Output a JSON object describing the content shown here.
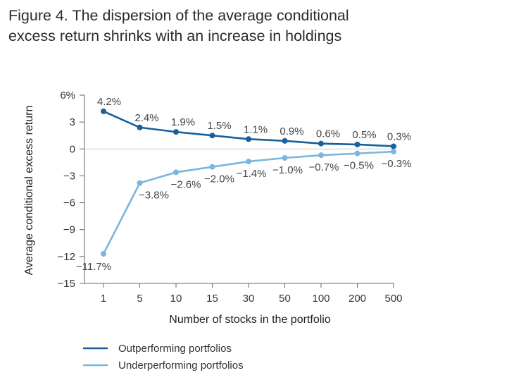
{
  "chart_data": {
    "type": "line",
    "title_lines": [
      "Figure 4. The dispersion of the average conditional",
      "excess return shrinks with an increase in holdings"
    ],
    "xlabel": "Number of stocks in the portfolio",
    "ylabel": "Average conditional excess return",
    "categories": [
      "1",
      "5",
      "10",
      "15",
      "30",
      "50",
      "100",
      "200",
      "500"
    ],
    "ylim": [
      -15,
      6
    ],
    "yticks": [
      6,
      3,
      0,
      -3,
      -6,
      -9,
      -12,
      -15
    ],
    "ytick_labels": [
      "6%",
      "3",
      "0",
      "−3",
      "−6",
      "−9",
      "−12",
      "−15"
    ],
    "grid": false,
    "zero_line": true,
    "legend_position": "bottom-left",
    "series": [
      {
        "name": "Outperforming portfolios",
        "color": "#17609c",
        "values": [
          4.2,
          2.4,
          1.9,
          1.5,
          1.1,
          0.9,
          0.6,
          0.5,
          0.3
        ],
        "labels": [
          "4.2%",
          "2.4%",
          "1.9%",
          "1.5%",
          "1.1%",
          "0.9%",
          "0.6%",
          "0.5%",
          "0.3%"
        ]
      },
      {
        "name": "Underperforming portfolios",
        "color": "#7ab6dd",
        "values": [
          -11.7,
          -3.8,
          -2.6,
          -2.0,
          -1.4,
          -1.0,
          -0.7,
          -0.5,
          -0.3
        ],
        "labels": [
          "−11.7%",
          "−3.8%",
          "−2.6%",
          "−2.0%",
          "−1.4%",
          "−1.0%",
          "−0.7%",
          "−0.5%",
          "−0.3%"
        ]
      }
    ]
  }
}
